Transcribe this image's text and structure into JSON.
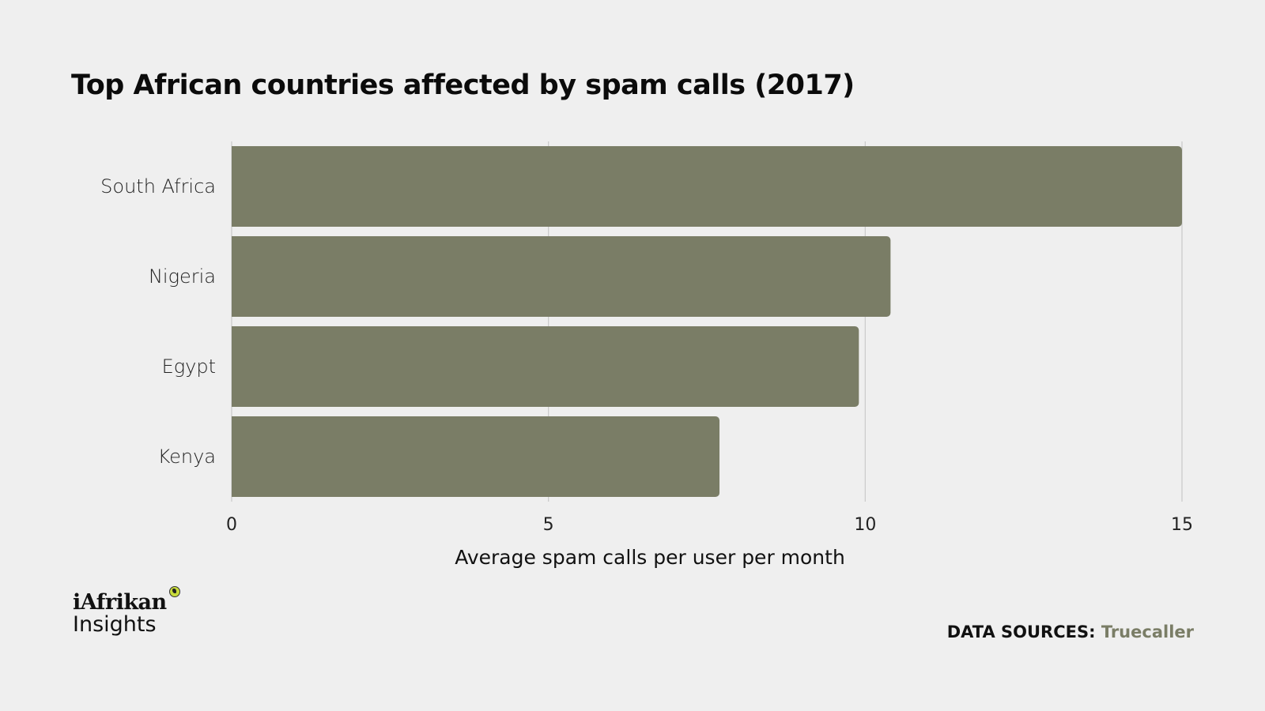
{
  "chart_data": {
    "type": "bar",
    "orientation": "horizontal",
    "title": "Top African countries affected by spam calls (2017)",
    "categories": [
      "South Africa",
      "Nigeria",
      "Egypt",
      "Kenya"
    ],
    "values": [
      15.0,
      10.4,
      9.9,
      7.7
    ],
    "xlabel": "Average spam calls per user per month",
    "ylabel": "",
    "xlim": [
      0,
      15
    ],
    "xticks": [
      0,
      5,
      10,
      15
    ],
    "grid": true,
    "bar_color": "#7a7d66",
    "grid_color": "#c9c9c9"
  },
  "logo": {
    "line1": "iAfrikan",
    "line2": "Insights",
    "mark_icon": "africa-globe-icon",
    "mark_color": "#c9dc3c"
  },
  "sources": {
    "label": "DATA SOURCES:",
    "value": "Truecaller",
    "value_color": "#7a7d66"
  }
}
